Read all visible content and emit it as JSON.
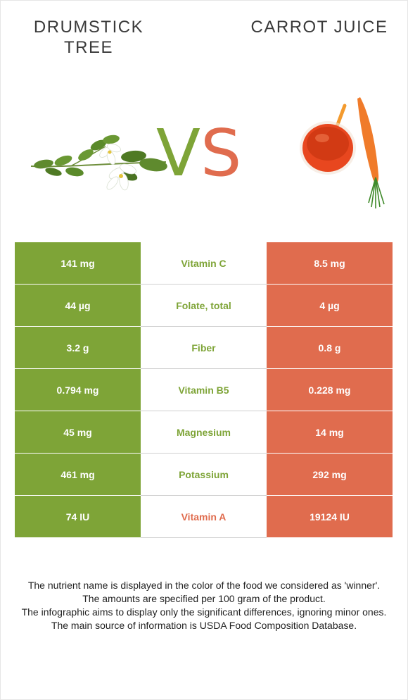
{
  "header": {
    "left_title": "Drumstick tree",
    "right_title": "Carrot juice",
    "vs_v": "V",
    "vs_s": "S"
  },
  "images": {
    "left": "drumstick-leaves-flowers-icon",
    "right": "carrot-juice-glass-icon"
  },
  "colors": {
    "green": "#7ea437",
    "orange": "#e06c4e"
  },
  "rows": [
    {
      "left": "141 mg",
      "nutrient": "Vitamin C",
      "right": "8.5 mg",
      "winner": "left"
    },
    {
      "left": "44 µg",
      "nutrient": "Folate, total",
      "right": "4 µg",
      "winner": "left"
    },
    {
      "left": "3.2 g",
      "nutrient": "Fiber",
      "right": "0.8 g",
      "winner": "left"
    },
    {
      "left": "0.794 mg",
      "nutrient": "Vitamin B5",
      "right": "0.228 mg",
      "winner": "left"
    },
    {
      "left": "45 mg",
      "nutrient": "Magnesium",
      "right": "14 mg",
      "winner": "left"
    },
    {
      "left": "461 mg",
      "nutrient": "Potassium",
      "right": "292 mg",
      "winner": "left"
    },
    {
      "left": "74 IU",
      "nutrient": "Vitamin A",
      "right": "19124 IU",
      "winner": "right"
    }
  ],
  "notes": [
    "The nutrient name is displayed in the color of the food we considered as 'winner'.",
    "The amounts are specified per 100 gram of the product.",
    "The infographic aims to display only the significant differences, ignoring minor ones.",
    "The main source of information is USDA Food Composition Database."
  ]
}
